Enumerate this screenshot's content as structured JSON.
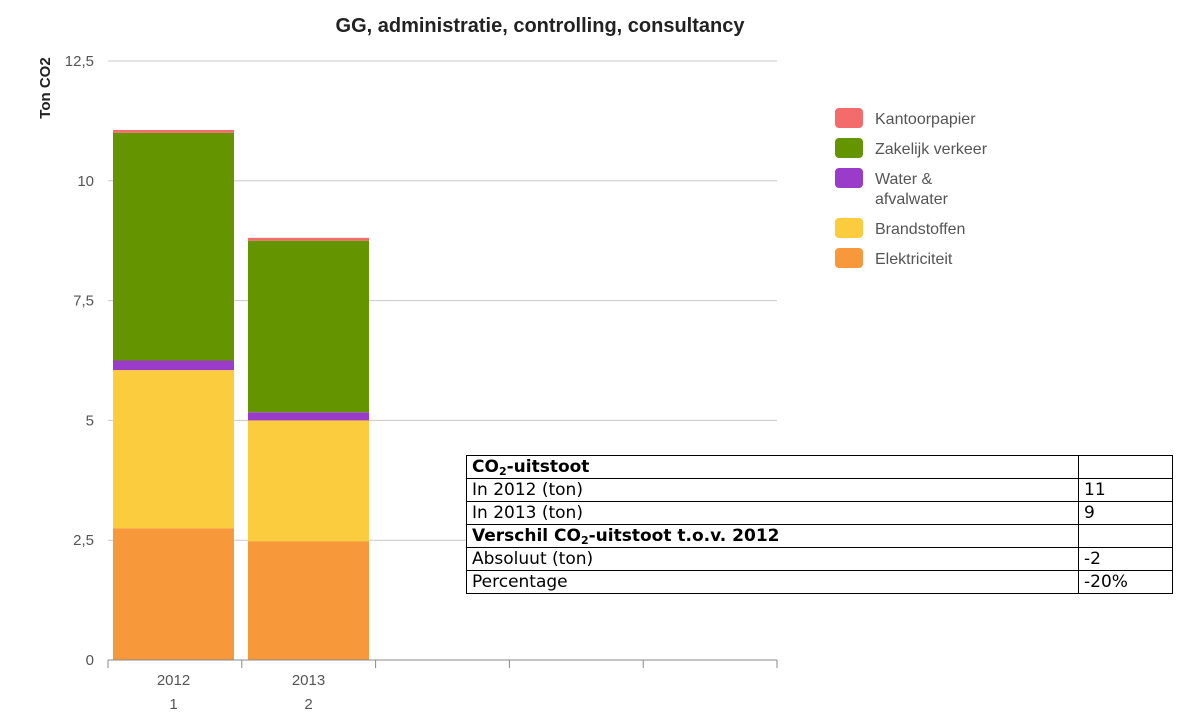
{
  "chart_data": {
    "type": "bar",
    "stacked": true,
    "title": "GG, administratie, controlling, consultancy",
    "ylabel": "Ton CO2",
    "ylim": [
      0,
      12.5
    ],
    "yticks": [
      "0",
      "2,5",
      "5",
      "7,5",
      "10",
      "12,5"
    ],
    "categories": [
      "2012",
      "2013"
    ],
    "category_sublabels": [
      "1",
      "2"
    ],
    "legend_position": "top-right",
    "series": [
      {
        "name": "Elektriciteit",
        "color": "#f7993a",
        "values": [
          2.75,
          2.48
        ]
      },
      {
        "name": "Brandstoffen",
        "color": "#fccc3f",
        "values": [
          3.3,
          2.52
        ]
      },
      {
        "name": "Water & afvalwater",
        "color": "#9b3bc9",
        "values": [
          0.2,
          0.17
        ]
      },
      {
        "name": "Zakelijk verkeer",
        "color": "#649400",
        "values": [
          4.75,
          3.58
        ]
      },
      {
        "name": "Kantoorpapier",
        "color": "#f36b6b",
        "values": [
          0.06,
          0.06
        ]
      }
    ],
    "legend": [
      {
        "lines": [
          "Kantoorpapier"
        ],
        "color": "#f36b6b"
      },
      {
        "lines": [
          "Zakelijk verkeer"
        ],
        "color": "#649400"
      },
      {
        "lines": [
          "Water &",
          "afvalwater"
        ],
        "color": "#9b3bc9"
      },
      {
        "lines": [
          "Brandstoffen"
        ],
        "color": "#fccc3f"
      },
      {
        "lines": [
          "Elektriciteit"
        ],
        "color": "#f7993a"
      }
    ]
  },
  "table": {
    "header_prefix": "CO",
    "header_sub": "2",
    "header_suffix": "-uitstoot",
    "rows": [
      {
        "label": "In 2012 (ton)",
        "value": "11"
      },
      {
        "label": "In 2013 (ton)",
        "value": "9"
      }
    ],
    "section_prefix": "Verschil CO",
    "section_sub": "2",
    "section_suffix": "-uitstoot t.o.v. 2012",
    "rows2": [
      {
        "label": "Absoluut (ton)",
        "value": "-2"
      },
      {
        "label": "Percentage",
        "value": "-20%"
      }
    ]
  }
}
